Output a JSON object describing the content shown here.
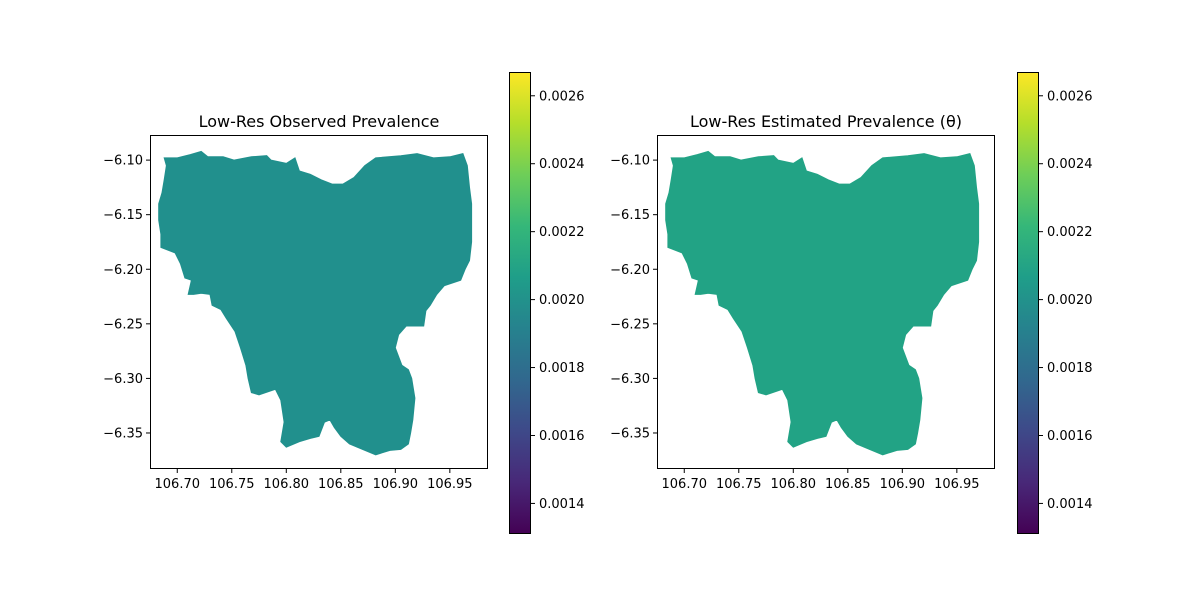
{
  "colormap": {
    "name": "viridis",
    "stops": [
      "#440154",
      "#482878",
      "#3e4989",
      "#31688e",
      "#26828e",
      "#1f9e89",
      "#35b779",
      "#6ece58",
      "#b5de2b",
      "#fde725"
    ],
    "vmin": 0.00131,
    "vmax": 0.00267,
    "ticks": [
      "0.0014",
      "0.0016",
      "0.0018",
      "0.0020",
      "0.0022",
      "0.0024",
      "0.0026"
    ],
    "tick_values": [
      0.0014,
      0.0016,
      0.0018,
      0.002,
      0.0022,
      0.0024,
      0.0026
    ]
  },
  "xlim": [
    106.675,
    106.985
  ],
  "ylim": [
    -6.383,
    -6.077
  ],
  "x_ticks": [
    "106.70",
    "106.75",
    "106.80",
    "106.85",
    "106.90",
    "106.95"
  ],
  "x_tick_values": [
    106.7,
    106.75,
    106.8,
    106.85,
    106.9,
    106.95
  ],
  "y_ticks": [
    "−6.10",
    "−6.15",
    "−6.20",
    "−6.25",
    "−6.30",
    "−6.35"
  ],
  "y_tick_values": [
    -6.1,
    -6.15,
    -6.2,
    -6.25,
    -6.3,
    -6.35
  ],
  "panels": [
    {
      "title": "Low-Res Observed Prevalence",
      "value": 0.002,
      "fill": "#21908d"
    },
    {
      "title": "Low-Res Estimated Prevalence (θ)",
      "value": 0.00214,
      "fill": "#22a385"
    }
  ],
  "region_outline": [
    [
      106.688,
      -6.098
    ],
    [
      106.7,
      -6.098
    ],
    [
      106.712,
      -6.095
    ],
    [
      106.722,
      -6.092
    ],
    [
      106.728,
      -6.097
    ],
    [
      106.742,
      -6.097
    ],
    [
      106.752,
      -6.1
    ],
    [
      106.768,
      -6.097
    ],
    [
      106.782,
      -6.096
    ],
    [
      106.786,
      -6.1
    ],
    [
      106.8,
      -6.103
    ],
    [
      106.808,
      -6.098
    ],
    [
      106.812,
      -6.11
    ],
    [
      106.822,
      -6.113
    ],
    [
      106.832,
      -6.118
    ],
    [
      106.842,
      -6.122
    ],
    [
      106.852,
      -6.122
    ],
    [
      106.862,
      -6.116
    ],
    [
      106.872,
      -6.105
    ],
    [
      106.882,
      -6.098
    ],
    [
      106.905,
      -6.096
    ],
    [
      106.92,
      -6.094
    ],
    [
      106.935,
      -6.098
    ],
    [
      106.95,
      -6.097
    ],
    [
      106.962,
      -6.094
    ],
    [
      106.966,
      -6.105
    ],
    [
      106.968,
      -6.125
    ],
    [
      106.97,
      -6.14
    ],
    [
      106.97,
      -6.16
    ],
    [
      106.97,
      -6.175
    ],
    [
      106.968,
      -6.192
    ],
    [
      106.964,
      -6.2
    ],
    [
      106.96,
      -6.21
    ],
    [
      106.945,
      -6.215
    ],
    [
      106.938,
      -6.223
    ],
    [
      106.932,
      -6.233
    ],
    [
      106.928,
      -6.238
    ],
    [
      106.926,
      -6.252
    ],
    [
      106.91,
      -6.252
    ],
    [
      106.903,
      -6.26
    ],
    [
      106.9,
      -6.272
    ],
    [
      106.903,
      -6.28
    ],
    [
      106.906,
      -6.288
    ],
    [
      106.912,
      -6.292
    ],
    [
      106.915,
      -6.3
    ],
    [
      106.918,
      -6.318
    ],
    [
      106.916,
      -6.338
    ],
    [
      106.914,
      -6.35
    ],
    [
      106.912,
      -6.36
    ],
    [
      106.905,
      -6.365
    ],
    [
      106.895,
      -6.366
    ],
    [
      106.882,
      -6.37
    ],
    [
      106.87,
      -6.365
    ],
    [
      106.858,
      -6.36
    ],
    [
      106.85,
      -6.353
    ],
    [
      106.844,
      -6.345
    ],
    [
      106.84,
      -6.338
    ],
    [
      106.835,
      -6.34
    ],
    [
      106.83,
      -6.353
    ],
    [
      106.822,
      -6.355
    ],
    [
      106.812,
      -6.358
    ],
    [
      106.8,
      -6.363
    ],
    [
      106.795,
      -6.358
    ],
    [
      106.798,
      -6.34
    ],
    [
      106.795,
      -6.32
    ],
    [
      106.79,
      -6.31
    ],
    [
      106.775,
      -6.315
    ],
    [
      106.768,
      -6.313
    ],
    [
      106.765,
      -6.3
    ],
    [
      106.763,
      -6.288
    ],
    [
      106.758,
      -6.272
    ],
    [
      106.753,
      -6.257
    ],
    [
      106.745,
      -6.245
    ],
    [
      106.74,
      -6.237
    ],
    [
      106.732,
      -6.233
    ],
    [
      106.73,
      -6.223
    ],
    [
      106.722,
      -6.222
    ],
    [
      106.715,
      -6.223
    ],
    [
      106.71,
      -6.223
    ],
    [
      106.713,
      -6.21
    ],
    [
      106.707,
      -6.208
    ],
    [
      106.703,
      -6.195
    ],
    [
      106.698,
      -6.185
    ],
    [
      106.685,
      -6.18
    ],
    [
      106.685,
      -6.168
    ],
    [
      106.683,
      -6.155
    ],
    [
      106.683,
      -6.14
    ],
    [
      106.686,
      -6.13
    ],
    [
      106.688,
      -6.118
    ],
    [
      106.69,
      -6.105
    ]
  ]
}
